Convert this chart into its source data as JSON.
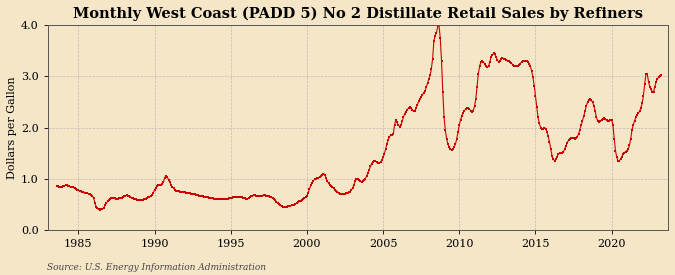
{
  "title": "Monthly West Coast (PADD 5) No 2 Distillate Retail Sales by Refiners",
  "ylabel": "Dollars per Gallon",
  "source": "Source: U.S. Energy Information Administration",
  "xlim": [
    1983.0,
    2023.7
  ],
  "ylim": [
    0.0,
    4.0
  ],
  "yticks": [
    0.0,
    1.0,
    2.0,
    3.0,
    4.0
  ],
  "xticks": [
    1985,
    1990,
    1995,
    2000,
    2005,
    2010,
    2015,
    2020
  ],
  "background_color": "#f5e6c8",
  "plot_bg_color": "#f5e6c8",
  "line_color": "#cc0000",
  "grid_color": "#b0b0b0",
  "title_fontsize": 10.5,
  "label_fontsize": 8,
  "tick_fontsize": 8,
  "data": [
    [
      1983.583,
      0.862
    ],
    [
      1983.667,
      0.853
    ],
    [
      1983.75,
      0.838
    ],
    [
      1983.833,
      0.833
    ],
    [
      1983.917,
      0.836
    ],
    [
      1984.0,
      0.847
    ],
    [
      1984.083,
      0.857
    ],
    [
      1984.167,
      0.868
    ],
    [
      1984.25,
      0.87
    ],
    [
      1984.333,
      0.858
    ],
    [
      1984.417,
      0.847
    ],
    [
      1984.5,
      0.842
    ],
    [
      1984.583,
      0.838
    ],
    [
      1984.667,
      0.827
    ],
    [
      1984.75,
      0.81
    ],
    [
      1984.833,
      0.8
    ],
    [
      1984.917,
      0.785
    ],
    [
      1985.0,
      0.772
    ],
    [
      1985.083,
      0.76
    ],
    [
      1985.167,
      0.75
    ],
    [
      1985.25,
      0.745
    ],
    [
      1985.333,
      0.738
    ],
    [
      1985.417,
      0.728
    ],
    [
      1985.5,
      0.72
    ],
    [
      1985.583,
      0.713
    ],
    [
      1985.667,
      0.707
    ],
    [
      1985.75,
      0.695
    ],
    [
      1985.833,
      0.682
    ],
    [
      1985.917,
      0.668
    ],
    [
      1986.0,
      0.618
    ],
    [
      1986.083,
      0.53
    ],
    [
      1986.167,
      0.45
    ],
    [
      1986.25,
      0.42
    ],
    [
      1986.333,
      0.4
    ],
    [
      1986.417,
      0.39
    ],
    [
      1986.5,
      0.398
    ],
    [
      1986.583,
      0.408
    ],
    [
      1986.667,
      0.43
    ],
    [
      1986.75,
      0.478
    ],
    [
      1986.833,
      0.52
    ],
    [
      1986.917,
      0.555
    ],
    [
      1987.0,
      0.58
    ],
    [
      1987.083,
      0.6
    ],
    [
      1987.167,
      0.618
    ],
    [
      1987.25,
      0.63
    ],
    [
      1987.333,
      0.625
    ],
    [
      1987.417,
      0.615
    ],
    [
      1987.5,
      0.61
    ],
    [
      1987.583,
      0.608
    ],
    [
      1987.667,
      0.612
    ],
    [
      1987.75,
      0.618
    ],
    [
      1987.833,
      0.63
    ],
    [
      1987.917,
      0.648
    ],
    [
      1988.0,
      0.66
    ],
    [
      1988.083,
      0.668
    ],
    [
      1988.167,
      0.672
    ],
    [
      1988.25,
      0.67
    ],
    [
      1988.333,
      0.655
    ],
    [
      1988.417,
      0.64
    ],
    [
      1988.5,
      0.628
    ],
    [
      1988.583,
      0.618
    ],
    [
      1988.667,
      0.608
    ],
    [
      1988.75,
      0.598
    ],
    [
      1988.833,
      0.59
    ],
    [
      1988.917,
      0.583
    ],
    [
      1989.0,
      0.578
    ],
    [
      1989.083,
      0.578
    ],
    [
      1989.167,
      0.582
    ],
    [
      1989.25,
      0.588
    ],
    [
      1989.333,
      0.598
    ],
    [
      1989.417,
      0.61
    ],
    [
      1989.5,
      0.622
    ],
    [
      1989.583,
      0.635
    ],
    [
      1989.667,
      0.648
    ],
    [
      1989.75,
      0.66
    ],
    [
      1989.833,
      0.68
    ],
    [
      1989.917,
      0.72
    ],
    [
      1990.0,
      0.78
    ],
    [
      1990.083,
      0.82
    ],
    [
      1990.167,
      0.858
    ],
    [
      1990.25,
      0.87
    ],
    [
      1990.333,
      0.878
    ],
    [
      1990.417,
      0.882
    ],
    [
      1990.5,
      0.895
    ],
    [
      1990.583,
      0.935
    ],
    [
      1990.667,
      1.02
    ],
    [
      1990.75,
      1.06
    ],
    [
      1990.833,
      1.03
    ],
    [
      1990.917,
      0.98
    ],
    [
      1991.0,
      0.93
    ],
    [
      1991.083,
      0.88
    ],
    [
      1991.167,
      0.84
    ],
    [
      1991.25,
      0.808
    ],
    [
      1991.333,
      0.785
    ],
    [
      1991.417,
      0.768
    ],
    [
      1991.5,
      0.76
    ],
    [
      1991.583,
      0.752
    ],
    [
      1991.667,
      0.745
    ],
    [
      1991.75,
      0.74
    ],
    [
      1991.833,
      0.738
    ],
    [
      1991.917,
      0.735
    ],
    [
      1992.0,
      0.732
    ],
    [
      1992.083,
      0.728
    ],
    [
      1992.167,
      0.722
    ],
    [
      1992.25,
      0.718
    ],
    [
      1992.333,
      0.712
    ],
    [
      1992.417,
      0.708
    ],
    [
      1992.5,
      0.702
    ],
    [
      1992.583,
      0.698
    ],
    [
      1992.667,
      0.692
    ],
    [
      1992.75,
      0.685
    ],
    [
      1992.833,
      0.678
    ],
    [
      1992.917,
      0.67
    ],
    [
      1993.0,
      0.665
    ],
    [
      1993.083,
      0.658
    ],
    [
      1993.167,
      0.652
    ],
    [
      1993.25,
      0.648
    ],
    [
      1993.333,
      0.643
    ],
    [
      1993.417,
      0.638
    ],
    [
      1993.5,
      0.633
    ],
    [
      1993.583,
      0.628
    ],
    [
      1993.667,
      0.622
    ],
    [
      1993.75,
      0.618
    ],
    [
      1993.833,
      0.614
    ],
    [
      1993.917,
      0.61
    ],
    [
      1994.0,
      0.607
    ],
    [
      1994.083,
      0.605
    ],
    [
      1994.167,
      0.603
    ],
    [
      1994.25,
      0.602
    ],
    [
      1994.333,
      0.601
    ],
    [
      1994.417,
      0.6
    ],
    [
      1994.5,
      0.6
    ],
    [
      1994.583,
      0.601
    ],
    [
      1994.667,
      0.603
    ],
    [
      1994.75,
      0.605
    ],
    [
      1994.833,
      0.608
    ],
    [
      1994.917,
      0.612
    ],
    [
      1995.0,
      0.618
    ],
    [
      1995.083,
      0.625
    ],
    [
      1995.167,
      0.633
    ],
    [
      1995.25,
      0.64
    ],
    [
      1995.333,
      0.645
    ],
    [
      1995.417,
      0.648
    ],
    [
      1995.5,
      0.648
    ],
    [
      1995.583,
      0.645
    ],
    [
      1995.667,
      0.64
    ],
    [
      1995.75,
      0.632
    ],
    [
      1995.833,
      0.623
    ],
    [
      1995.917,
      0.615
    ],
    [
      1996.0,
      0.61
    ],
    [
      1996.083,
      0.61
    ],
    [
      1996.167,
      0.618
    ],
    [
      1996.25,
      0.635
    ],
    [
      1996.333,
      0.652
    ],
    [
      1996.417,
      0.665
    ],
    [
      1996.5,
      0.672
    ],
    [
      1996.583,
      0.673
    ],
    [
      1996.667,
      0.668
    ],
    [
      1996.75,
      0.66
    ],
    [
      1996.833,
      0.655
    ],
    [
      1996.917,
      0.655
    ],
    [
      1997.0,
      0.66
    ],
    [
      1997.083,
      0.668
    ],
    [
      1997.167,
      0.672
    ],
    [
      1997.25,
      0.673
    ],
    [
      1997.333,
      0.67
    ],
    [
      1997.417,
      0.663
    ],
    [
      1997.5,
      0.655
    ],
    [
      1997.583,
      0.645
    ],
    [
      1997.667,
      0.633
    ],
    [
      1997.75,
      0.618
    ],
    [
      1997.833,
      0.6
    ],
    [
      1997.917,
      0.578
    ],
    [
      1998.0,
      0.553
    ],
    [
      1998.083,
      0.525
    ],
    [
      1998.167,
      0.498
    ],
    [
      1998.25,
      0.475
    ],
    [
      1998.333,
      0.458
    ],
    [
      1998.417,
      0.448
    ],
    [
      1998.5,
      0.445
    ],
    [
      1998.583,
      0.448
    ],
    [
      1998.667,
      0.455
    ],
    [
      1998.75,
      0.462
    ],
    [
      1998.833,
      0.468
    ],
    [
      1998.917,
      0.472
    ],
    [
      1999.0,
      0.475
    ],
    [
      1999.083,
      0.48
    ],
    [
      1999.167,
      0.49
    ],
    [
      1999.25,
      0.505
    ],
    [
      1999.333,
      0.522
    ],
    [
      1999.417,
      0.54
    ],
    [
      1999.5,
      0.555
    ],
    [
      1999.583,
      0.568
    ],
    [
      1999.667,
      0.58
    ],
    [
      1999.75,
      0.595
    ],
    [
      1999.833,
      0.615
    ],
    [
      1999.917,
      0.64
    ],
    [
      2000.0,
      0.67
    ],
    [
      2000.083,
      0.72
    ],
    [
      2000.167,
      0.8
    ],
    [
      2000.25,
      0.87
    ],
    [
      2000.333,
      0.92
    ],
    [
      2000.417,
      0.96
    ],
    [
      2000.5,
      0.985
    ],
    [
      2000.583,
      1.0
    ],
    [
      2000.667,
      1.01
    ],
    [
      2000.75,
      1.02
    ],
    [
      2000.833,
      1.03
    ],
    [
      2000.917,
      1.05
    ],
    [
      2001.0,
      1.08
    ],
    [
      2001.083,
      1.1
    ],
    [
      2001.167,
      1.08
    ],
    [
      2001.25,
      1.02
    ],
    [
      2001.333,
      0.958
    ],
    [
      2001.417,
      0.91
    ],
    [
      2001.5,
      0.878
    ],
    [
      2001.583,
      0.855
    ],
    [
      2001.667,
      0.835
    ],
    [
      2001.75,
      0.81
    ],
    [
      2001.833,
      0.785
    ],
    [
      2001.917,
      0.76
    ],
    [
      2002.0,
      0.738
    ],
    [
      2002.083,
      0.72
    ],
    [
      2002.167,
      0.708
    ],
    [
      2002.25,
      0.7
    ],
    [
      2002.333,
      0.698
    ],
    [
      2002.417,
      0.7
    ],
    [
      2002.5,
      0.705
    ],
    [
      2002.583,
      0.71
    ],
    [
      2002.667,
      0.718
    ],
    [
      2002.75,
      0.73
    ],
    [
      2002.833,
      0.748
    ],
    [
      2002.917,
      0.775
    ],
    [
      2003.0,
      0.82
    ],
    [
      2003.083,
      0.88
    ],
    [
      2003.167,
      0.945
    ],
    [
      2003.25,
      0.99
    ],
    [
      2003.333,
      0.988
    ],
    [
      2003.417,
      0.965
    ],
    [
      2003.5,
      0.945
    ],
    [
      2003.583,
      0.94
    ],
    [
      2003.667,
      0.948
    ],
    [
      2003.75,
      0.965
    ],
    [
      2003.833,
      0.998
    ],
    [
      2003.917,
      1.05
    ],
    [
      2004.0,
      1.11
    ],
    [
      2004.083,
      1.175
    ],
    [
      2004.167,
      1.24
    ],
    [
      2004.25,
      1.295
    ],
    [
      2004.333,
      1.33
    ],
    [
      2004.417,
      1.345
    ],
    [
      2004.5,
      1.34
    ],
    [
      2004.583,
      1.325
    ],
    [
      2004.667,
      1.31
    ],
    [
      2004.75,
      1.305
    ],
    [
      2004.833,
      1.32
    ],
    [
      2004.917,
      1.36
    ],
    [
      2005.0,
      1.42
    ],
    [
      2005.083,
      1.49
    ],
    [
      2005.167,
      1.58
    ],
    [
      2005.25,
      1.68
    ],
    [
      2005.333,
      1.76
    ],
    [
      2005.417,
      1.82
    ],
    [
      2005.5,
      1.85
    ],
    [
      2005.583,
      1.85
    ],
    [
      2005.667,
      1.87
    ],
    [
      2005.75,
      2.05
    ],
    [
      2005.833,
      2.15
    ],
    [
      2005.917,
      2.1
    ],
    [
      2006.0,
      2.05
    ],
    [
      2006.083,
      2.02
    ],
    [
      2006.167,
      2.05
    ],
    [
      2006.25,
      2.12
    ],
    [
      2006.333,
      2.2
    ],
    [
      2006.417,
      2.27
    ],
    [
      2006.5,
      2.31
    ],
    [
      2006.583,
      2.35
    ],
    [
      2006.667,
      2.38
    ],
    [
      2006.75,
      2.4
    ],
    [
      2006.833,
      2.38
    ],
    [
      2006.917,
      2.35
    ],
    [
      2007.0,
      2.32
    ],
    [
      2007.083,
      2.33
    ],
    [
      2007.167,
      2.38
    ],
    [
      2007.25,
      2.45
    ],
    [
      2007.333,
      2.51
    ],
    [
      2007.417,
      2.56
    ],
    [
      2007.5,
      2.6
    ],
    [
      2007.583,
      2.64
    ],
    [
      2007.667,
      2.68
    ],
    [
      2007.75,
      2.72
    ],
    [
      2007.833,
      2.79
    ],
    [
      2007.917,
      2.87
    ],
    [
      2008.0,
      2.95
    ],
    [
      2008.083,
      3.02
    ],
    [
      2008.167,
      3.15
    ],
    [
      2008.25,
      3.35
    ],
    [
      2008.333,
      3.7
    ],
    [
      2008.417,
      3.8
    ],
    [
      2008.5,
      3.85
    ],
    [
      2008.583,
      3.98
    ],
    [
      2008.667,
      4.0
    ],
    [
      2008.75,
      3.75
    ],
    [
      2008.833,
      3.3
    ],
    [
      2008.917,
      2.7
    ],
    [
      2009.0,
      2.2
    ],
    [
      2009.083,
      1.95
    ],
    [
      2009.167,
      1.78
    ],
    [
      2009.25,
      1.68
    ],
    [
      2009.333,
      1.62
    ],
    [
      2009.417,
      1.58
    ],
    [
      2009.5,
      1.57
    ],
    [
      2009.583,
      1.58
    ],
    [
      2009.667,
      1.62
    ],
    [
      2009.75,
      1.68
    ],
    [
      2009.833,
      1.78
    ],
    [
      2009.917,
      1.92
    ],
    [
      2010.0,
      2.05
    ],
    [
      2010.083,
      2.15
    ],
    [
      2010.167,
      2.23
    ],
    [
      2010.25,
      2.29
    ],
    [
      2010.333,
      2.33
    ],
    [
      2010.417,
      2.36
    ],
    [
      2010.5,
      2.38
    ],
    [
      2010.583,
      2.38
    ],
    [
      2010.667,
      2.36
    ],
    [
      2010.75,
      2.33
    ],
    [
      2010.833,
      2.31
    ],
    [
      2010.917,
      2.33
    ],
    [
      2011.0,
      2.42
    ],
    [
      2011.083,
      2.56
    ],
    [
      2011.167,
      2.8
    ],
    [
      2011.25,
      3.05
    ],
    [
      2011.333,
      3.2
    ],
    [
      2011.417,
      3.28
    ],
    [
      2011.5,
      3.3
    ],
    [
      2011.583,
      3.28
    ],
    [
      2011.667,
      3.24
    ],
    [
      2011.75,
      3.2
    ],
    [
      2011.833,
      3.18
    ],
    [
      2011.917,
      3.2
    ],
    [
      2012.0,
      3.28
    ],
    [
      2012.083,
      3.38
    ],
    [
      2012.167,
      3.42
    ],
    [
      2012.25,
      3.45
    ],
    [
      2012.333,
      3.43
    ],
    [
      2012.417,
      3.38
    ],
    [
      2012.5,
      3.32
    ],
    [
      2012.583,
      3.28
    ],
    [
      2012.667,
      3.3
    ],
    [
      2012.75,
      3.34
    ],
    [
      2012.833,
      3.36
    ],
    [
      2012.917,
      3.35
    ],
    [
      2013.0,
      3.34
    ],
    [
      2013.083,
      3.32
    ],
    [
      2013.167,
      3.31
    ],
    [
      2013.25,
      3.3
    ],
    [
      2013.333,
      3.28
    ],
    [
      2013.417,
      3.26
    ],
    [
      2013.5,
      3.23
    ],
    [
      2013.583,
      3.21
    ],
    [
      2013.667,
      3.2
    ],
    [
      2013.75,
      3.2
    ],
    [
      2013.833,
      3.21
    ],
    [
      2013.917,
      3.22
    ],
    [
      2014.0,
      3.25
    ],
    [
      2014.083,
      3.28
    ],
    [
      2014.167,
      3.3
    ],
    [
      2014.25,
      3.31
    ],
    [
      2014.333,
      3.31
    ],
    [
      2014.417,
      3.3
    ],
    [
      2014.5,
      3.28
    ],
    [
      2014.583,
      3.25
    ],
    [
      2014.667,
      3.2
    ],
    [
      2014.75,
      3.1
    ],
    [
      2014.833,
      2.98
    ],
    [
      2014.917,
      2.82
    ],
    [
      2015.0,
      2.62
    ],
    [
      2015.083,
      2.4
    ],
    [
      2015.167,
      2.2
    ],
    [
      2015.25,
      2.08
    ],
    [
      2015.333,
      2.0
    ],
    [
      2015.417,
      1.97
    ],
    [
      2015.5,
      1.98
    ],
    [
      2015.583,
      2.0
    ],
    [
      2015.667,
      1.98
    ],
    [
      2015.75,
      1.92
    ],
    [
      2015.833,
      1.83
    ],
    [
      2015.917,
      1.72
    ],
    [
      2016.0,
      1.58
    ],
    [
      2016.083,
      1.45
    ],
    [
      2016.167,
      1.38
    ],
    [
      2016.25,
      1.35
    ],
    [
      2016.333,
      1.38
    ],
    [
      2016.417,
      1.43
    ],
    [
      2016.5,
      1.48
    ],
    [
      2016.583,
      1.5
    ],
    [
      2016.667,
      1.5
    ],
    [
      2016.75,
      1.5
    ],
    [
      2016.833,
      1.53
    ],
    [
      2016.917,
      1.58
    ],
    [
      2017.0,
      1.64
    ],
    [
      2017.083,
      1.7
    ],
    [
      2017.167,
      1.75
    ],
    [
      2017.25,
      1.78
    ],
    [
      2017.333,
      1.8
    ],
    [
      2017.417,
      1.8
    ],
    [
      2017.5,
      1.79
    ],
    [
      2017.583,
      1.78
    ],
    [
      2017.667,
      1.79
    ],
    [
      2017.75,
      1.82
    ],
    [
      2017.833,
      1.88
    ],
    [
      2017.917,
      1.96
    ],
    [
      2018.0,
      2.05
    ],
    [
      2018.083,
      2.13
    ],
    [
      2018.167,
      2.22
    ],
    [
      2018.25,
      2.32
    ],
    [
      2018.333,
      2.42
    ],
    [
      2018.417,
      2.5
    ],
    [
      2018.5,
      2.54
    ],
    [
      2018.583,
      2.55
    ],
    [
      2018.667,
      2.53
    ],
    [
      2018.75,
      2.49
    ],
    [
      2018.833,
      2.43
    ],
    [
      2018.917,
      2.32
    ],
    [
      2019.0,
      2.2
    ],
    [
      2019.083,
      2.13
    ],
    [
      2019.167,
      2.1
    ],
    [
      2019.25,
      2.12
    ],
    [
      2019.333,
      2.15
    ],
    [
      2019.417,
      2.17
    ],
    [
      2019.5,
      2.18
    ],
    [
      2019.583,
      2.16
    ],
    [
      2019.667,
      2.14
    ],
    [
      2019.75,
      2.12
    ],
    [
      2019.833,
      2.13
    ],
    [
      2019.917,
      2.15
    ],
    [
      2020.0,
      2.15
    ],
    [
      2020.083,
      2.05
    ],
    [
      2020.167,
      1.78
    ],
    [
      2020.25,
      1.55
    ],
    [
      2020.333,
      1.42
    ],
    [
      2020.417,
      1.35
    ],
    [
      2020.5,
      1.35
    ],
    [
      2020.583,
      1.38
    ],
    [
      2020.667,
      1.43
    ],
    [
      2020.75,
      1.48
    ],
    [
      2020.833,
      1.51
    ],
    [
      2020.917,
      1.53
    ],
    [
      2021.0,
      1.54
    ],
    [
      2021.083,
      1.58
    ],
    [
      2021.167,
      1.65
    ],
    [
      2021.25,
      1.78
    ],
    [
      2021.333,
      1.95
    ],
    [
      2021.417,
      2.05
    ],
    [
      2021.5,
      2.13
    ],
    [
      2021.583,
      2.2
    ],
    [
      2021.667,
      2.25
    ],
    [
      2021.75,
      2.28
    ],
    [
      2021.833,
      2.32
    ],
    [
      2021.917,
      2.38
    ],
    [
      2022.0,
      2.48
    ],
    [
      2022.083,
      2.62
    ],
    [
      2022.167,
      2.85
    ],
    [
      2022.25,
      3.05
    ],
    [
      2022.333,
      3.05
    ],
    [
      2022.417,
      2.9
    ],
    [
      2022.5,
      2.8
    ],
    [
      2022.583,
      2.75
    ],
    [
      2022.667,
      2.7
    ],
    [
      2022.75,
      2.7
    ],
    [
      2022.833,
      2.8
    ],
    [
      2022.917,
      2.9
    ],
    [
      2023.0,
      2.95
    ],
    [
      2023.083,
      2.98
    ],
    [
      2023.167,
      3.0
    ],
    [
      2023.25,
      3.02
    ]
  ]
}
